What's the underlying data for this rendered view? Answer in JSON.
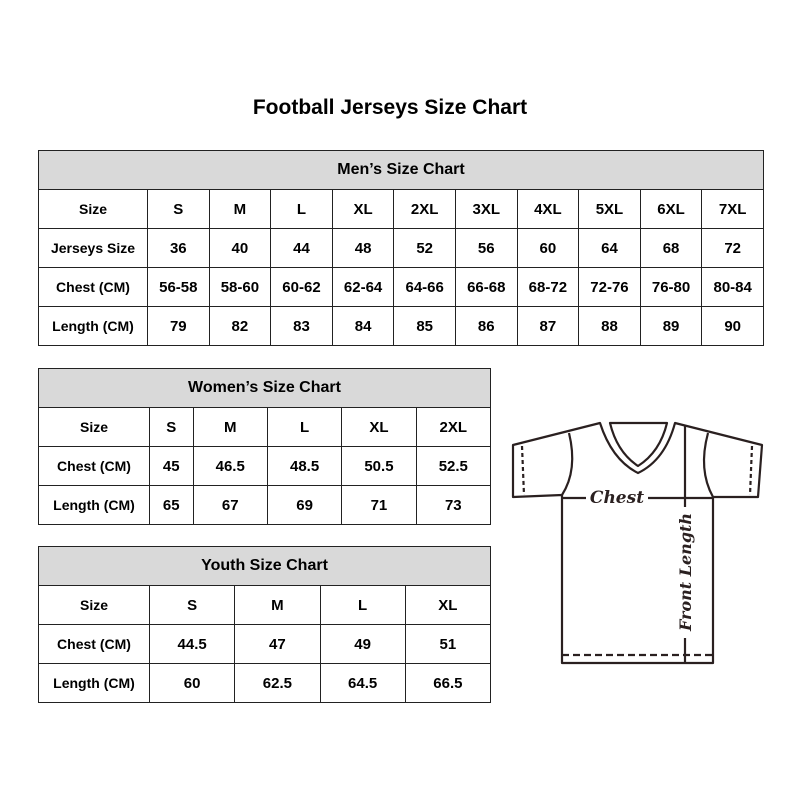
{
  "title": "Football Jerseys Size Chart",
  "men": {
    "heading": "Men’s Size Chart",
    "rows": [
      [
        "Size",
        "S",
        "M",
        "L",
        "XL",
        "2XL",
        "3XL",
        "4XL",
        "5XL",
        "6XL",
        "7XL"
      ],
      [
        "Jerseys Size",
        "36",
        "40",
        "44",
        "48",
        "52",
        "56",
        "60",
        "64",
        "68",
        "72"
      ],
      [
        "Chest (CM)",
        "56-58",
        "58-60",
        "60-62",
        "62-64",
        "64-66",
        "66-68",
        "68-72",
        "72-76",
        "76-80",
        "80-84"
      ],
      [
        "Length (CM)",
        "79",
        "82",
        "83",
        "84",
        "85",
        "86",
        "87",
        "88",
        "89",
        "90"
      ]
    ]
  },
  "women": {
    "heading": "Women’s Size Chart",
    "rows": [
      [
        "Size",
        "S",
        "M",
        "L",
        "XL",
        "2XL"
      ],
      [
        "Chest (CM)",
        "45",
        "46.5",
        "48.5",
        "50.5",
        "52.5"
      ],
      [
        "Length (CM)",
        "65",
        "67",
        "69",
        "71",
        "73"
      ]
    ]
  },
  "youth": {
    "heading": "Youth Size Chart",
    "rows": [
      [
        "Size",
        "S",
        "M",
        "L",
        "XL"
      ],
      [
        "Chest (CM)",
        "44.5",
        "47",
        "49",
        "51"
      ],
      [
        "Length (CM)",
        "60",
        "62.5",
        "64.5",
        "66.5"
      ]
    ]
  },
  "diagram": {
    "chest_label": "Chest",
    "length_label": "Front Length"
  },
  "colors": {
    "header_bg": "#d9d9d9",
    "line": "#2a2020"
  }
}
